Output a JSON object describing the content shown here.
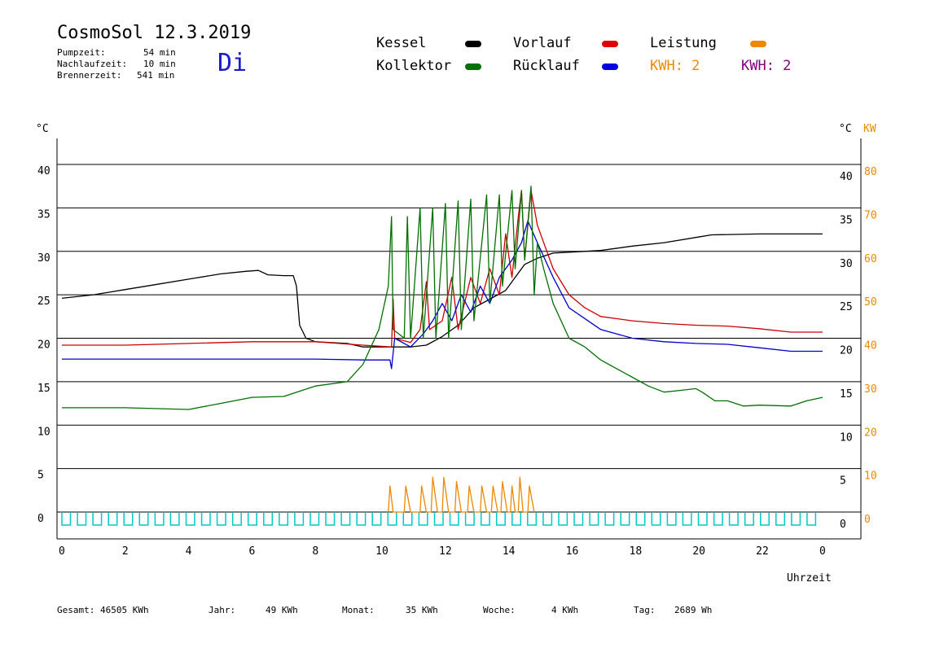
{
  "header": {
    "title": "CosmoSol 12.3.2019",
    "day": "Di",
    "stats": [
      {
        "label": "Pumpzeit:",
        "value": "54 min"
      },
      {
        "label": "Nachlaufzeit:",
        "value": "10 min"
      },
      {
        "label": "Brennerzeit:",
        "value": "541 min"
      }
    ]
  },
  "legend": {
    "kessel": "Kessel",
    "vorlauf": "Vorlauf",
    "leistung": "Leistung",
    "kollektor": "Kollektor",
    "ruecklauf": "Rücklauf",
    "kwh_orange": "KWH: 2",
    "kwh_purple": "KWH: 2"
  },
  "colors": {
    "kessel": "#000000",
    "vorlauf": "#cc0000",
    "ruecklauf": "#0000cc",
    "kollektor": "#007000",
    "leistung": "#ee8800",
    "kwh_purple": "#800080",
    "pump": "#00c8c8",
    "grid": "#000000"
  },
  "footer": [
    {
      "label": "Gesamt:",
      "value": "46505 KWh"
    },
    {
      "label": "Jahr:",
      "value": "49 KWh"
    },
    {
      "label": "Monat:",
      "value": "35 KWh"
    },
    {
      "label": "Woche:",
      "value": "4 KWh"
    },
    {
      "label": "Tag:",
      "value": "2689 Wh"
    }
  ],
  "chart_data": {
    "type": "line",
    "xlabel": "Uhrzeit",
    "xlim": [
      0,
      24
    ],
    "x_ticks": [
      "0",
      "2",
      "4",
      "6",
      "8",
      "10",
      "12",
      "14",
      "16",
      "18",
      "20",
      "22",
      "0"
    ],
    "ylim": [
      0,
      40
    ],
    "left_unit": "°C",
    "right_unit": "°C",
    "right2_unit": "KW",
    "y_ticks_left": [
      0,
      5,
      10,
      15,
      20,
      25,
      30,
      35,
      40
    ],
    "y_ticks_right": [
      0,
      5,
      10,
      15,
      20,
      25,
      30,
      35,
      40
    ],
    "y_ticks_kw": [
      0,
      10,
      20,
      30,
      40,
      50,
      60,
      70,
      80
    ],
    "grid": "horizontal",
    "series": [
      {
        "key": "kessel",
        "name": "Kessel",
        "color": "#000000",
        "points": [
          [
            0,
            24.6
          ],
          [
            1,
            25.0
          ],
          [
            2,
            25.6
          ],
          [
            3,
            26.2
          ],
          [
            4,
            26.8
          ],
          [
            5,
            27.4
          ],
          [
            5.8,
            27.7
          ],
          [
            6.2,
            27.8
          ],
          [
            6.5,
            27.3
          ],
          [
            7,
            27.2
          ],
          [
            7.3,
            27.2
          ],
          [
            7.4,
            26
          ],
          [
            7.5,
            21.5
          ],
          [
            7.7,
            20.0
          ],
          [
            8,
            19.6
          ],
          [
            9,
            19.4
          ],
          [
            9.5,
            19.0
          ],
          [
            10,
            19.0
          ],
          [
            10.5,
            19.0
          ],
          [
            11,
            19.0
          ],
          [
            11.5,
            19.2
          ],
          [
            12,
            20.2
          ],
          [
            12.5,
            21.5
          ],
          [
            13,
            23.5
          ],
          [
            13.5,
            24.5
          ],
          [
            14,
            25.5
          ],
          [
            14.3,
            27.0
          ],
          [
            14.6,
            28.5
          ],
          [
            15,
            29.2
          ],
          [
            15.5,
            29.8
          ],
          [
            16,
            29.9
          ],
          [
            17,
            30.1
          ],
          [
            18,
            30.6
          ],
          [
            19,
            31.0
          ],
          [
            20,
            31.6
          ],
          [
            20.5,
            31.9
          ],
          [
            22,
            32.0
          ],
          [
            24,
            32.0
          ]
        ]
      },
      {
        "key": "vorlauf",
        "name": "Vorlauf",
        "color": "#cc0000",
        "points": [
          [
            0,
            19.2
          ],
          [
            2,
            19.2
          ],
          [
            4,
            19.4
          ],
          [
            6,
            19.6
          ],
          [
            8,
            19.6
          ],
          [
            9.5,
            19.2
          ],
          [
            10.4,
            19.0
          ],
          [
            10.45,
            24.5
          ],
          [
            10.5,
            20.0
          ],
          [
            11,
            19.5
          ],
          [
            11.3,
            21
          ],
          [
            11.5,
            26.5
          ],
          [
            11.6,
            21
          ],
          [
            12,
            22
          ],
          [
            12.3,
            27
          ],
          [
            12.5,
            21
          ],
          [
            12.9,
            27
          ],
          [
            13.2,
            24
          ],
          [
            13.5,
            28
          ],
          [
            13.8,
            25
          ],
          [
            14.0,
            32
          ],
          [
            14.2,
            27
          ],
          [
            14.4,
            34
          ],
          [
            14.5,
            37
          ],
          [
            14.6,
            29
          ],
          [
            14.8,
            37
          ],
          [
            15,
            33
          ],
          [
            15.5,
            28
          ],
          [
            16,
            25
          ],
          [
            16.5,
            23.5
          ],
          [
            17,
            22.5
          ],
          [
            18,
            22.0
          ],
          [
            19,
            21.7
          ],
          [
            20,
            21.5
          ],
          [
            21,
            21.4
          ],
          [
            22,
            21.1
          ],
          [
            23,
            20.7
          ],
          [
            24,
            20.7
          ]
        ]
      },
      {
        "key": "ruecklauf",
        "name": "Rücklauf",
        "color": "#0000cc",
        "points": [
          [
            0,
            17.6
          ],
          [
            2,
            17.6
          ],
          [
            4,
            17.6
          ],
          [
            6,
            17.6
          ],
          [
            8,
            17.6
          ],
          [
            9.5,
            17.5
          ],
          [
            10.35,
            17.5
          ],
          [
            10.4,
            16.5
          ],
          [
            10.5,
            20.0
          ],
          [
            11,
            19
          ],
          [
            11.4,
            20.5
          ],
          [
            11.7,
            22
          ],
          [
            12,
            24
          ],
          [
            12.3,
            22
          ],
          [
            12.6,
            25
          ],
          [
            12.9,
            23
          ],
          [
            13.2,
            26
          ],
          [
            13.5,
            24
          ],
          [
            13.8,
            27
          ],
          [
            14,
            28
          ],
          [
            14.2,
            29
          ],
          [
            14.5,
            31
          ],
          [
            14.7,
            33.5
          ],
          [
            15,
            31
          ],
          [
            15.5,
            27
          ],
          [
            16,
            23.5
          ],
          [
            17,
            21
          ],
          [
            18,
            20.0
          ],
          [
            19,
            19.6
          ],
          [
            20,
            19.4
          ],
          [
            21,
            19.3
          ],
          [
            22,
            18.9
          ],
          [
            23,
            18.5
          ],
          [
            24,
            18.5
          ]
        ]
      },
      {
        "key": "kollektor",
        "name": "Kollektor",
        "color": "#007000",
        "points": [
          [
            0,
            12.0
          ],
          [
            2,
            12.0
          ],
          [
            4,
            11.8
          ],
          [
            5,
            12.5
          ],
          [
            6,
            13.2
          ],
          [
            7,
            13.3
          ],
          [
            8,
            14.5
          ],
          [
            9,
            15.0
          ],
          [
            9.5,
            17
          ],
          [
            10,
            21
          ],
          [
            10.3,
            26
          ],
          [
            10.4,
            34
          ],
          [
            10.45,
            21
          ],
          [
            10.8,
            20
          ],
          [
            10.9,
            34
          ],
          [
            11,
            20
          ],
          [
            11.3,
            35
          ],
          [
            11.4,
            20
          ],
          [
            11.7,
            35
          ],
          [
            11.8,
            20
          ],
          [
            12.1,
            35.5
          ],
          [
            12.2,
            20
          ],
          [
            12.5,
            35.8
          ],
          [
            12.6,
            21
          ],
          [
            12.9,
            36
          ],
          [
            13.0,
            22
          ],
          [
            13.4,
            36.5
          ],
          [
            13.5,
            24
          ],
          [
            13.8,
            36.5
          ],
          [
            13.9,
            26
          ],
          [
            14.2,
            37
          ],
          [
            14.3,
            28
          ],
          [
            14.5,
            37
          ],
          [
            14.6,
            29
          ],
          [
            14.8,
            37.5
          ],
          [
            14.9,
            25
          ],
          [
            15,
            31
          ],
          [
            15.2,
            28
          ],
          [
            15.5,
            24
          ],
          [
            16,
            20
          ],
          [
            16.5,
            19
          ],
          [
            17,
            17.5
          ],
          [
            18,
            15.5
          ],
          [
            18.5,
            14.5
          ],
          [
            19,
            13.8
          ],
          [
            19.5,
            14.0
          ],
          [
            20,
            14.2
          ],
          [
            20.2,
            13.8
          ],
          [
            20.6,
            12.8
          ],
          [
            21,
            12.8
          ],
          [
            21.5,
            12.2
          ],
          [
            22,
            12.3
          ],
          [
            23,
            12.2
          ],
          [
            23.5,
            12.8
          ],
          [
            24,
            13.2
          ]
        ]
      },
      {
        "key": "leistung",
        "name": "Leistung",
        "color": "#ee8800",
        "unit": "KW",
        "points": [
          [
            10.3,
            0
          ],
          [
            10.35,
            6
          ],
          [
            10.45,
            0
          ],
          [
            10.8,
            0
          ],
          [
            10.85,
            6
          ],
          [
            11,
            0
          ],
          [
            11.3,
            0
          ],
          [
            11.35,
            6
          ],
          [
            11.5,
            0
          ],
          [
            11.65,
            0
          ],
          [
            11.7,
            8
          ],
          [
            11.85,
            0
          ],
          [
            12.0,
            0
          ],
          [
            12.05,
            8
          ],
          [
            12.2,
            0
          ],
          [
            12.4,
            0
          ],
          [
            12.45,
            7
          ],
          [
            12.6,
            0
          ],
          [
            12.8,
            0
          ],
          [
            12.85,
            6
          ],
          [
            13.0,
            0
          ],
          [
            13.2,
            0
          ],
          [
            13.25,
            6
          ],
          [
            13.4,
            0
          ],
          [
            13.55,
            0
          ],
          [
            13.6,
            6
          ],
          [
            13.75,
            0
          ],
          [
            13.85,
            0
          ],
          [
            13.9,
            7
          ],
          [
            14.05,
            0
          ],
          [
            14.15,
            0
          ],
          [
            14.2,
            6
          ],
          [
            14.3,
            0
          ],
          [
            14.4,
            0
          ],
          [
            14.45,
            8
          ],
          [
            14.55,
            0
          ],
          [
            14.7,
            0
          ],
          [
            14.75,
            6
          ],
          [
            14.9,
            0
          ]
        ]
      }
    ],
    "pump_cycles": {
      "color": "#00c8c8",
      "count": 49,
      "x_range": [
        0,
        24
      ]
    }
  }
}
